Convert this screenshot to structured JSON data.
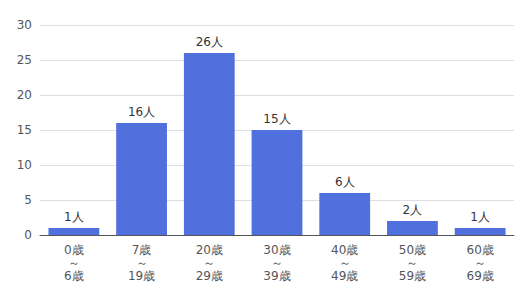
{
  "chart_data": {
    "type": "bar",
    "categories": [
      "0歳\n～\n6歳",
      "7歳\n～\n19歳",
      "20歳\n～\n29歳",
      "30歳\n～\n39歳",
      "40歳\n～\n49歳",
      "50歳\n～\n59歳",
      "60歳\n～\n69歳"
    ],
    "values": [
      1,
      16,
      26,
      15,
      6,
      2,
      1
    ],
    "value_labels": [
      "1人",
      "16人",
      "26人",
      "15人",
      "6人",
      "2人",
      "1人"
    ],
    "data_labels": true,
    "ylim": [
      0,
      30
    ],
    "yticks": [
      0,
      5,
      10,
      15,
      20,
      25,
      30
    ],
    "grid": true
  }
}
